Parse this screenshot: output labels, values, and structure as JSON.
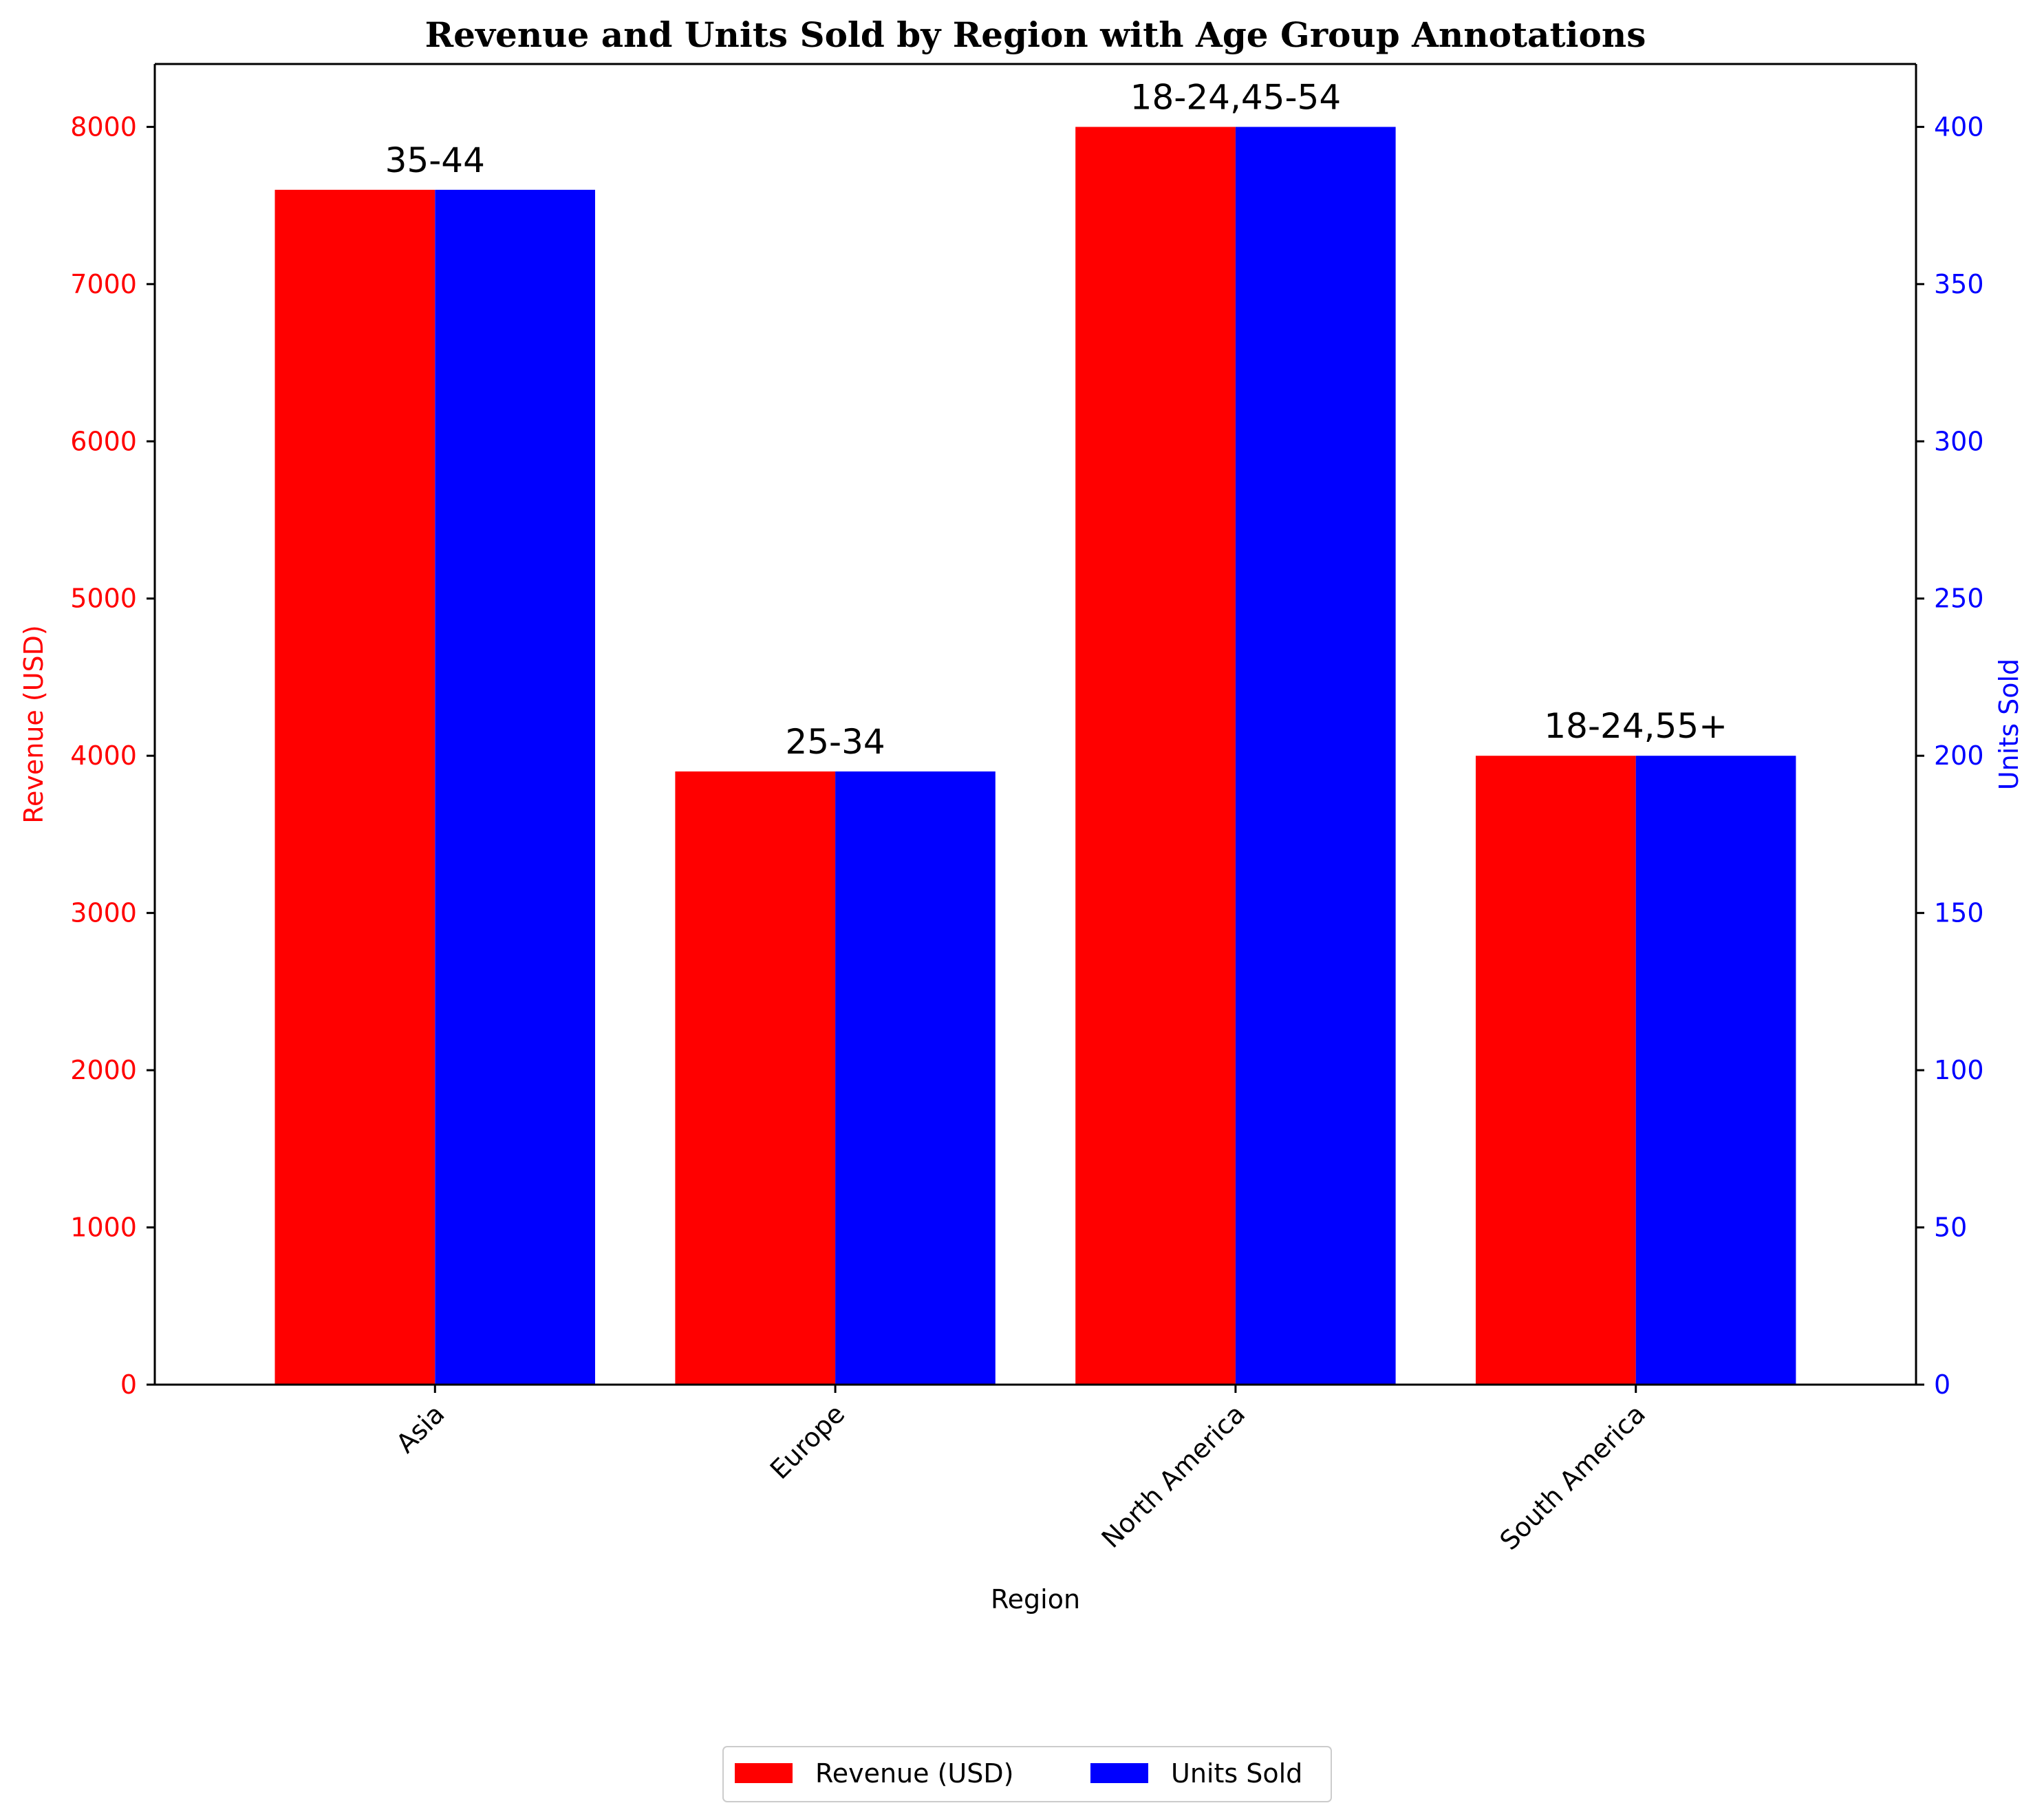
{
  "chart_data": {
    "type": "bar",
    "title": "Revenue and Units Sold by Region with Age Group Annotations",
    "xlabel": "Region",
    "categories": [
      "Asia",
      "Europe",
      "North America",
      "South America"
    ],
    "series": [
      {
        "name": "Revenue (USD)",
        "axis": "left",
        "color": "#ff0000",
        "values": [
          7600,
          3900,
          8000,
          4000
        ]
      },
      {
        "name": "Units Sold",
        "axis": "right",
        "color": "#0000ff",
        "values": [
          380,
          195,
          400,
          200
        ]
      }
    ],
    "annotations": [
      "35-44",
      "25-34",
      "18-24,45-54",
      "18-24,55+"
    ],
    "y_left": {
      "label": "Revenue (USD)",
      "color": "#ff0000",
      "lim": [
        0,
        8400
      ],
      "ticks": [
        "0",
        "1000",
        "2000",
        "3000",
        "4000",
        "5000",
        "6000",
        "7000",
        "8000"
      ]
    },
    "y_right": {
      "label": "Units Sold",
      "color": "#0000ff",
      "lim": [
        0,
        420
      ],
      "ticks": [
        "0",
        "50",
        "100",
        "150",
        "200",
        "250",
        "300",
        "350",
        "400"
      ]
    },
    "grid": false,
    "legend": {
      "placement": "bottom-center",
      "entries": [
        "Revenue (USD)",
        "Units Sold"
      ]
    }
  }
}
